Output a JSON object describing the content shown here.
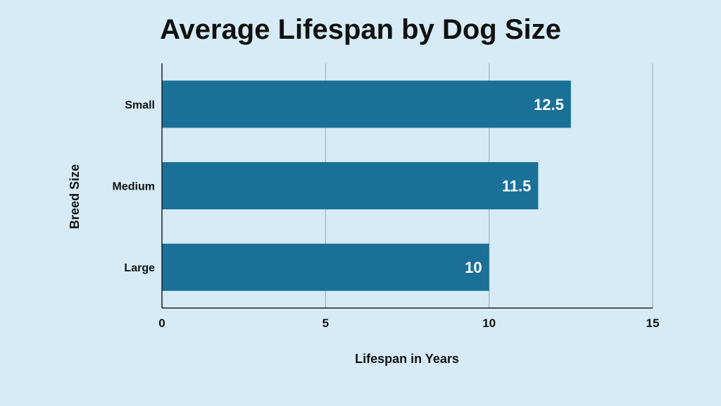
{
  "chart_data": {
    "type": "bar",
    "orientation": "horizontal",
    "title": "Average Lifespan by Dog Size",
    "xlabel": "Lifespan in Years",
    "ylabel": "Breed Size",
    "categories": [
      "Small",
      "Medium",
      "Large"
    ],
    "values": [
      12.5,
      11.5,
      10
    ],
    "data_labels": [
      "12.5",
      "11.5",
      "10"
    ],
    "xlim": [
      0,
      15
    ],
    "xticks": [
      0,
      5,
      10,
      15
    ],
    "grid": true,
    "colors": {
      "bar": "#1a7096",
      "background": "#d6ebf5",
      "gridline": "#9aa8b0",
      "axis": "#222222"
    }
  }
}
